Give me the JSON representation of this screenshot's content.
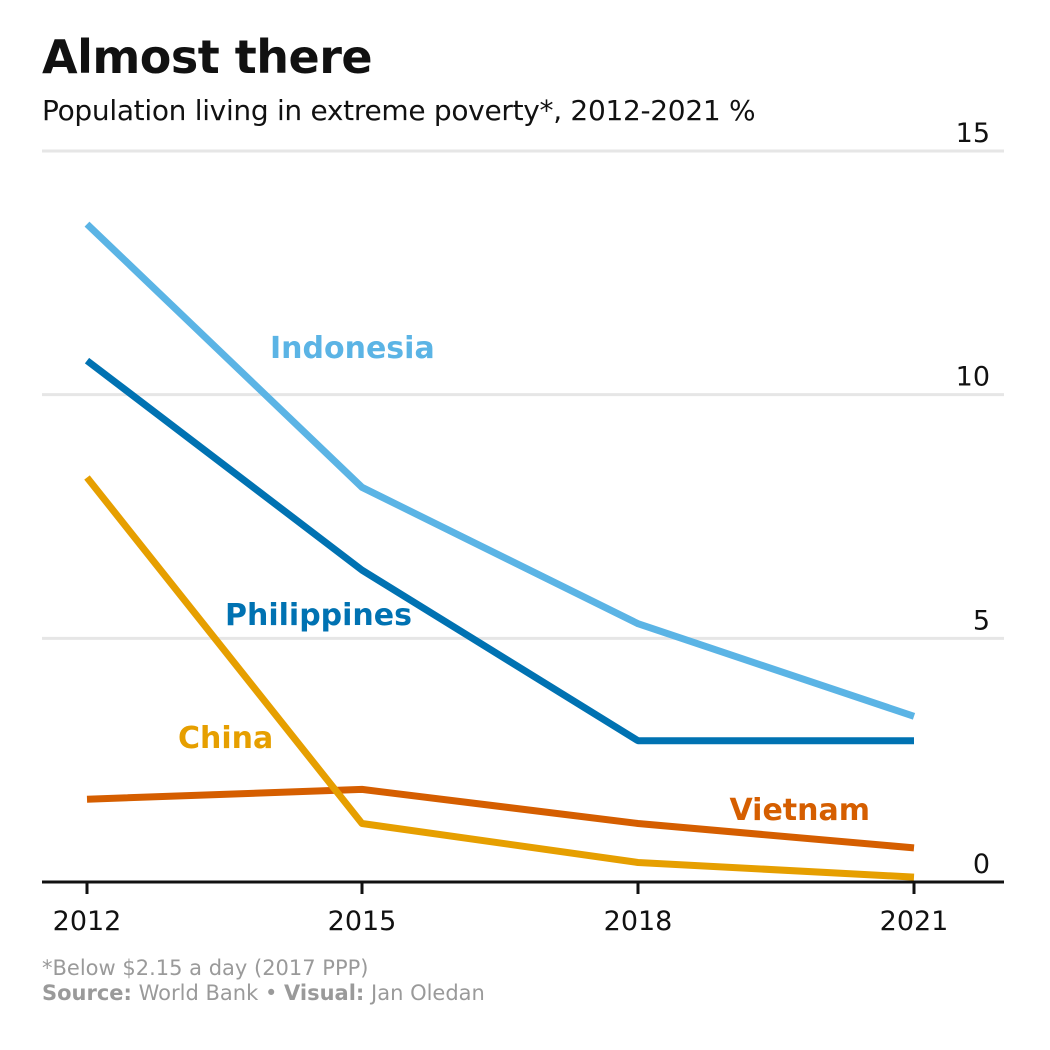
{
  "title": "Almost there",
  "subtitle": "Population living in extreme poverty*, 2012-2021 %",
  "footnote": "*Below $2.15 a day (2017 PPP)",
  "source_label": "Source:",
  "source_value": "World Bank",
  "separator": "•",
  "visual_label": "Visual:",
  "visual_value": "Jan Oledan",
  "chart_data": {
    "type": "line",
    "x": [
      "2012",
      "2015",
      "2018",
      "2021"
    ],
    "ylim": [
      0,
      15
    ],
    "yticks": [
      0,
      5,
      10,
      15
    ],
    "y_axis_side": "right",
    "grid": true,
    "legend": "direct labels on lines",
    "series": [
      {
        "name": "Indonesia",
        "color": "#5BB4E5",
        "values": [
          13.5,
          8.1,
          5.3,
          3.4
        ]
      },
      {
        "name": "Philippines",
        "color": "#0072B2",
        "values": [
          10.7,
          6.4,
          2.9,
          2.9
        ]
      },
      {
        "name": "China",
        "color": "#E69F00",
        "values": [
          8.3,
          1.2,
          0.4,
          0.1
        ]
      },
      {
        "name": "Vietnam",
        "color": "#D55E00",
        "values": [
          1.7,
          1.9,
          1.2,
          0.7
        ]
      }
    ]
  }
}
